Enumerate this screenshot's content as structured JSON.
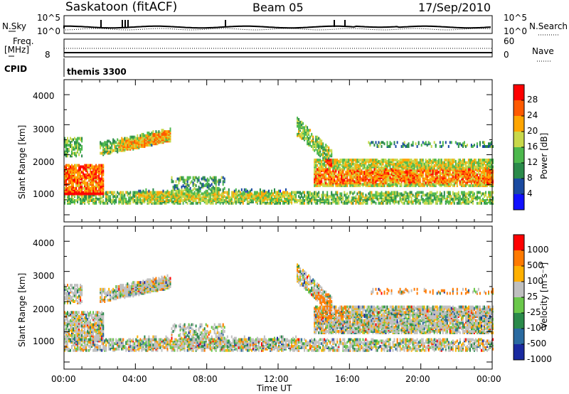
{
  "header": {
    "station": "Saskatoon (fitACF)",
    "beam": "Beam 05",
    "date": "17/Sep/2010"
  },
  "top_panels": {
    "nsky_label": "N.Sky",
    "nsky_ticks": [
      "10^5",
      "10^0"
    ],
    "nsearch_label": "N.Search",
    "nsearch_ticks": [
      "10^5",
      "10^0"
    ],
    "freq_label": "Freq.",
    "freq_unit": "[MHz]",
    "freq_tick": "8",
    "nave_label": "Nave",
    "nave_ticks": [
      "60",
      "0"
    ],
    "cpid_label": "CPID",
    "cpid_value": "themis 3300"
  },
  "chart_data": [
    {
      "type": "heatmap",
      "name": "power",
      "ylabel": "Slant Range [km]",
      "xlabel": "",
      "yticks": [
        "4000",
        "3000",
        "2000",
        "1000"
      ],
      "colorbar_label": "Power [dB]",
      "colorbar_ticks": [
        "28",
        "24",
        "20",
        "16",
        "12",
        "8",
        "4"
      ],
      "colors": [
        "#1010ff",
        "#1a4aa0",
        "#2a8a4a",
        "#4db84d",
        "#c8d84a",
        "#ffa500",
        "#ff5a00",
        "#ff0000"
      ]
    },
    {
      "type": "heatmap",
      "name": "velocity",
      "ylabel": "Slant Range [km]",
      "xlabel": "Time UT",
      "yticks": [
        "4000",
        "3000",
        "2000",
        "1000"
      ],
      "xticks": [
        "00:00",
        "04:00",
        "08:00",
        "12:00",
        "16:00",
        "20:00",
        "00:00"
      ],
      "colorbar_label": "Velocity [m s⁻¹]",
      "colorbar_ticks": [
        "1000",
        "500",
        "100",
        "25",
        "-25",
        "-100",
        "-500",
        "-1000"
      ],
      "colors": [
        "#1a2aa0",
        "#2a6aa0",
        "#2a8a4a",
        "#6ac84a",
        "#bfbfbf",
        "#ffb000",
        "#ff7a00",
        "#ff0000"
      ]
    }
  ]
}
